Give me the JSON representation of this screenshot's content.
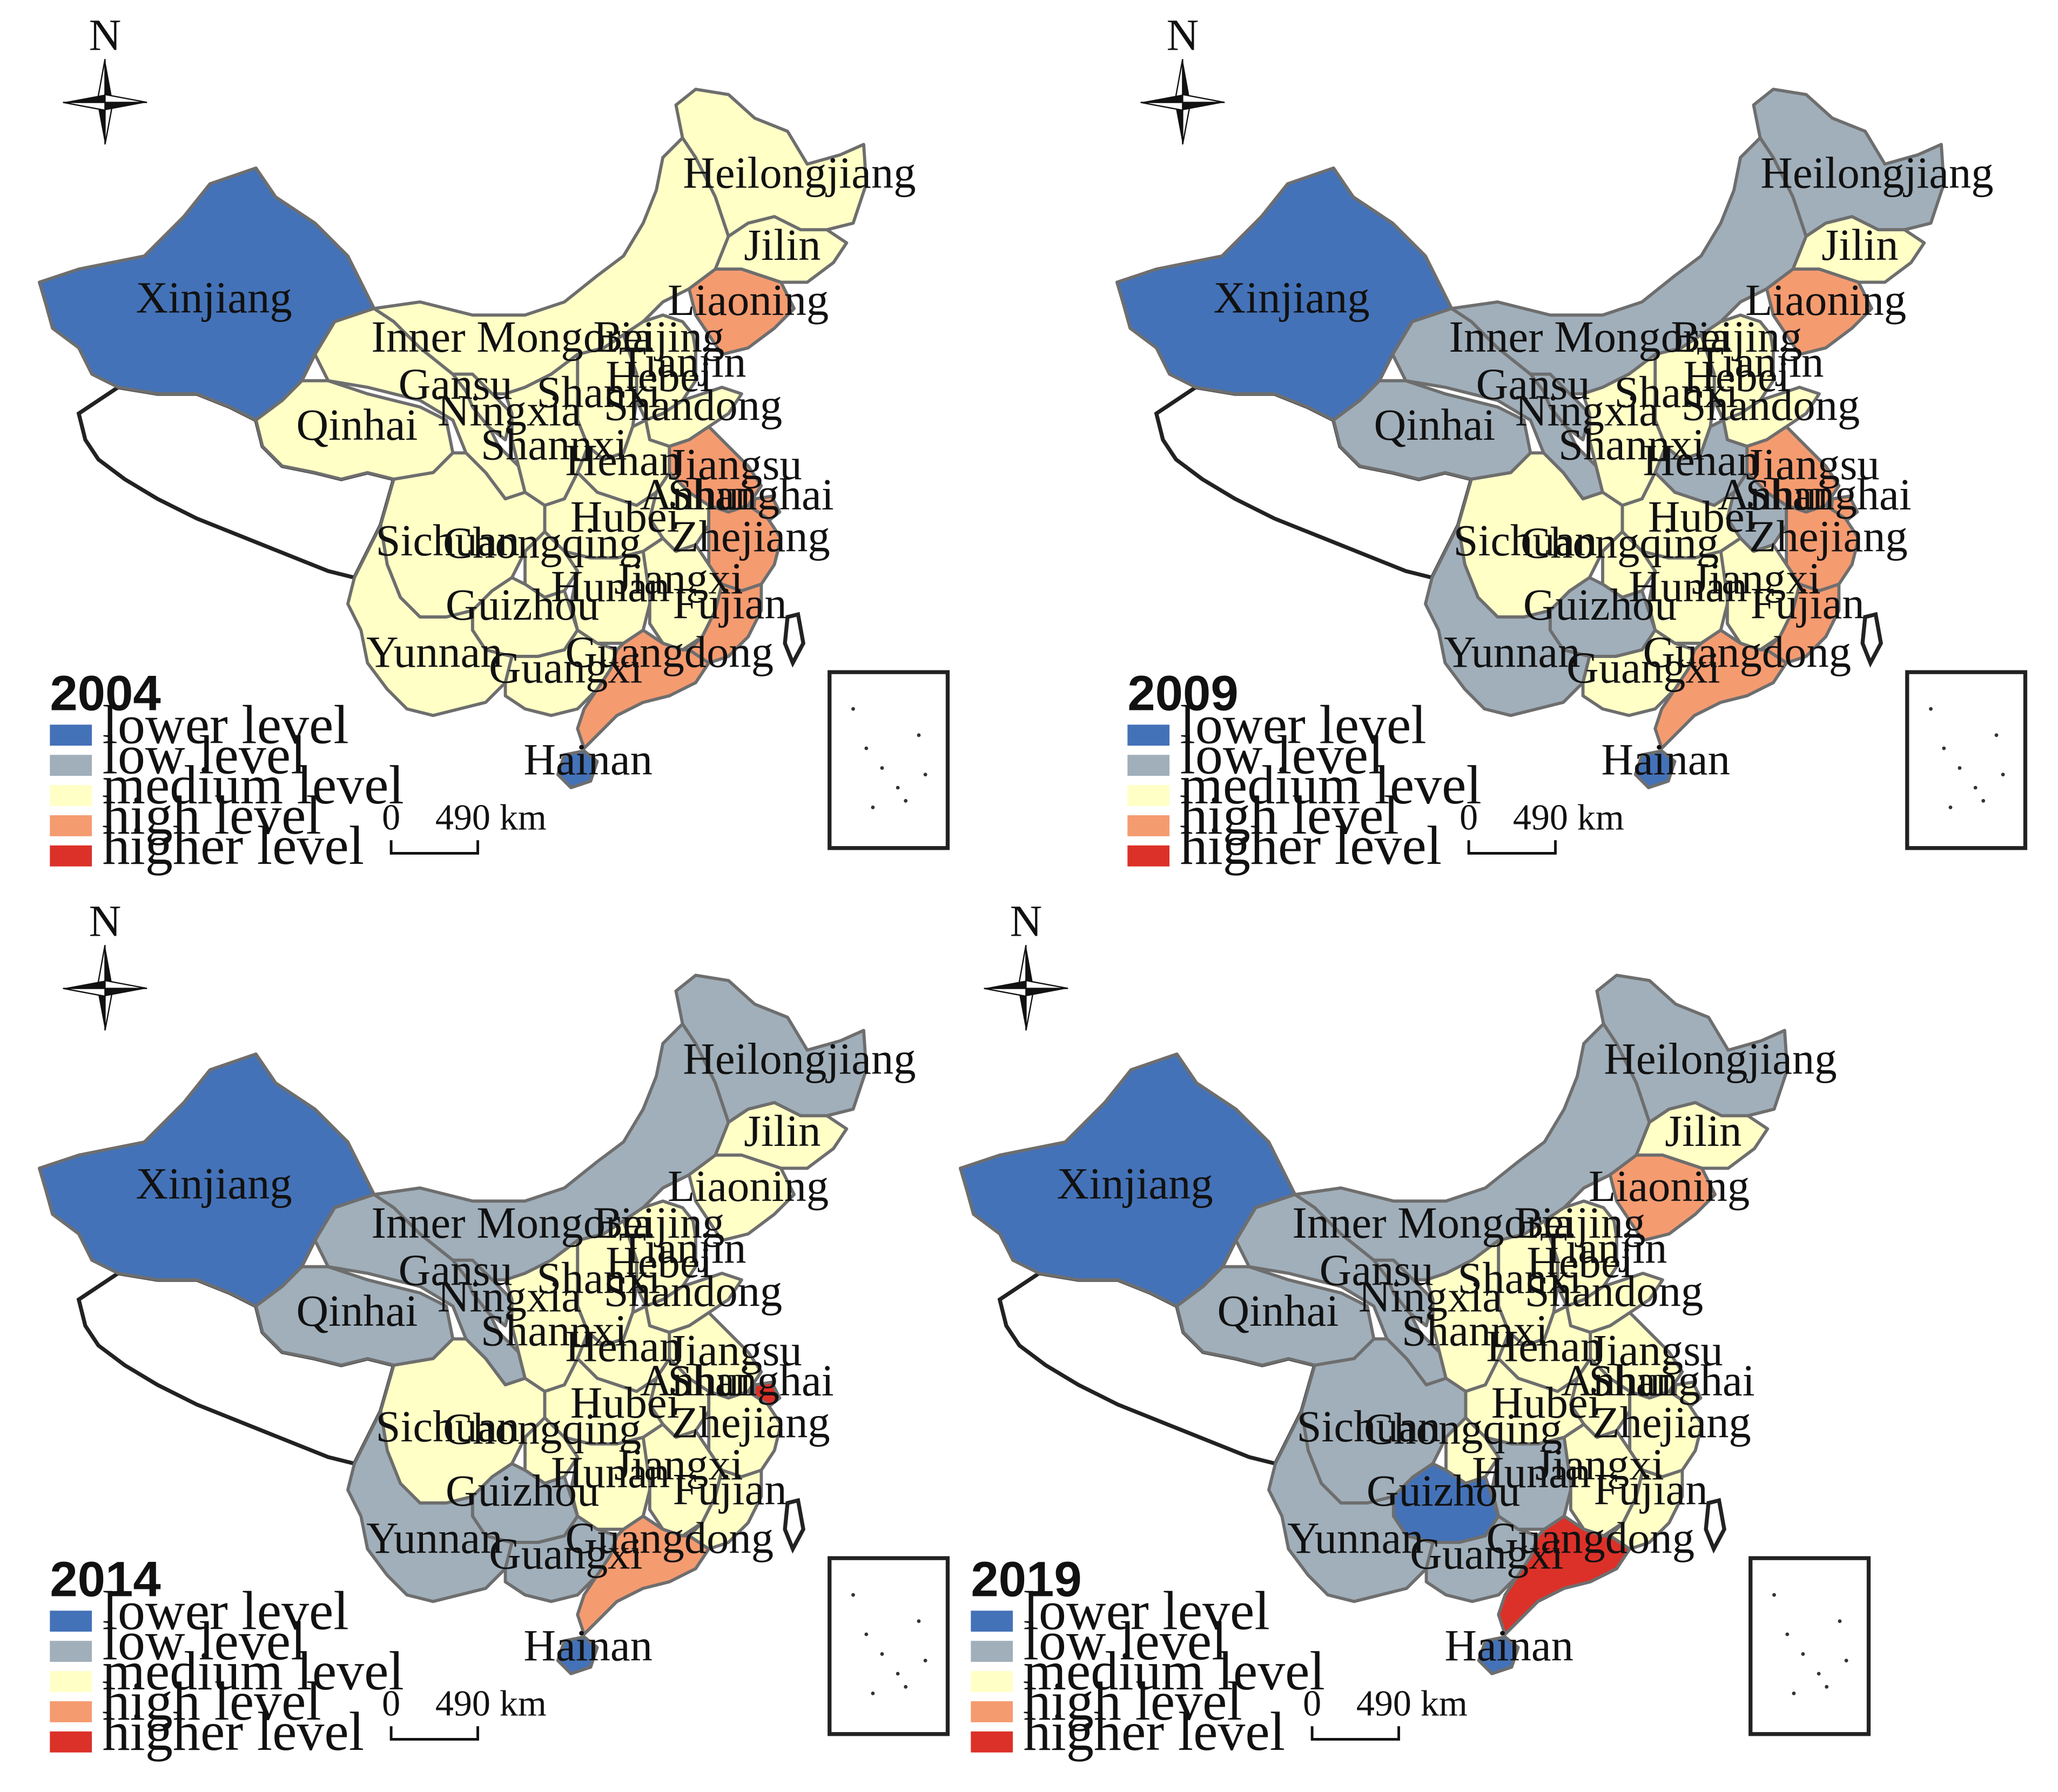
{
  "north_label": "N",
  "scale_bar": {
    "zero": "0",
    "distance": "490 km"
  },
  "legend_labels": [
    "lower level",
    "low level",
    "medium level",
    "high level",
    "higher level"
  ],
  "level_colors": {
    "lower": "#4472b8",
    "low": "#a0afba",
    "medium": "#ffffc6",
    "high": "#f59b70",
    "higher": "#dc3128"
  },
  "panels": [
    {
      "year": "2004",
      "levels": {
        "Xinjiang": "lower",
        "Qinhai": "medium",
        "Inner Mongoria": "medium",
        "Heilongjiang": "medium",
        "Jilin": "medium",
        "Liaoning": "high",
        "Beijing": "high",
        "Tianjin": "medium",
        "Hebei": "medium",
        "Shanxi": "medium",
        "Shandong": "medium",
        "Gansu": "medium",
        "Ningxia": "medium",
        "Shannxi": "medium",
        "Henan": "medium",
        "Jiangsu": "high",
        "Anhui": "medium",
        "Shanghai": "high",
        "Hubei": "medium",
        "Zhejiang": "high",
        "Sichuan": "medium",
        "Chongqing": "medium",
        "Hunan": "medium",
        "Jiangxi": "medium",
        "Fujian": "high",
        "Guizhou": "medium",
        "Yunnan": "medium",
        "Guangxi": "medium",
        "Guangdong": "high",
        "Hainan": "lower"
      }
    },
    {
      "year": "2009",
      "levels": {
        "Xinjiang": "lower",
        "Qinhai": "low",
        "Inner Mongoria": "low",
        "Heilongjiang": "low",
        "Jilin": "medium",
        "Liaoning": "high",
        "Beijing": "higher",
        "Tianjin": "medium",
        "Hebei": "medium",
        "Shanxi": "medium",
        "Shandong": "medium",
        "Gansu": "low",
        "Ningxia": "low",
        "Shannxi": "medium",
        "Henan": "low",
        "Jiangsu": "high",
        "Anhui": "low",
        "Shanghai": "high",
        "Hubei": "medium",
        "Zhejiang": "high",
        "Sichuan": "medium",
        "Chongqing": "medium",
        "Hunan": "medium",
        "Jiangxi": "medium",
        "Fujian": "high",
        "Guizhou": "low",
        "Yunnan": "low",
        "Guangxi": "medium",
        "Guangdong": "high",
        "Hainan": "lower"
      }
    },
    {
      "year": "2014",
      "levels": {
        "Xinjiang": "lower",
        "Qinhai": "low",
        "Inner Mongoria": "low",
        "Heilongjiang": "low",
        "Jilin": "medium",
        "Liaoning": "medium",
        "Beijing": "high",
        "Tianjin": "medium",
        "Hebei": "medium",
        "Shanxi": "medium",
        "Shandong": "medium",
        "Gansu": "low",
        "Ningxia": "low",
        "Shannxi": "medium",
        "Henan": "medium",
        "Jiangsu": "medium",
        "Anhui": "medium",
        "Shanghai": "higher",
        "Hubei": "medium",
        "Zhejiang": "medium",
        "Sichuan": "medium",
        "Chongqing": "medium",
        "Hunan": "medium",
        "Jiangxi": "medium",
        "Fujian": "medium",
        "Guizhou": "low",
        "Yunnan": "low",
        "Guangxi": "low",
        "Guangdong": "high",
        "Hainan": "lower"
      }
    },
    {
      "year": "2019",
      "levels": {
        "Xinjiang": "lower",
        "Qinhai": "low",
        "Inner Mongoria": "low",
        "Heilongjiang": "low",
        "Jilin": "medium",
        "Liaoning": "high",
        "Beijing": "high",
        "Tianjin": "medium",
        "Hebei": "medium",
        "Shanxi": "medium",
        "Shandong": "medium",
        "Gansu": "low",
        "Ningxia": "low",
        "Shannxi": "medium",
        "Henan": "medium",
        "Jiangsu": "medium",
        "Anhui": "medium",
        "Shanghai": "medium",
        "Hubei": "medium",
        "Zhejiang": "medium",
        "Sichuan": "low",
        "Chongqing": "medium",
        "Hunan": "low",
        "Jiangxi": "medium",
        "Fujian": "medium",
        "Guizhou": "lower",
        "Yunnan": "low",
        "Guangxi": "low",
        "Guangdong": "higher",
        "Hainan": "lower"
      }
    }
  ]
}
